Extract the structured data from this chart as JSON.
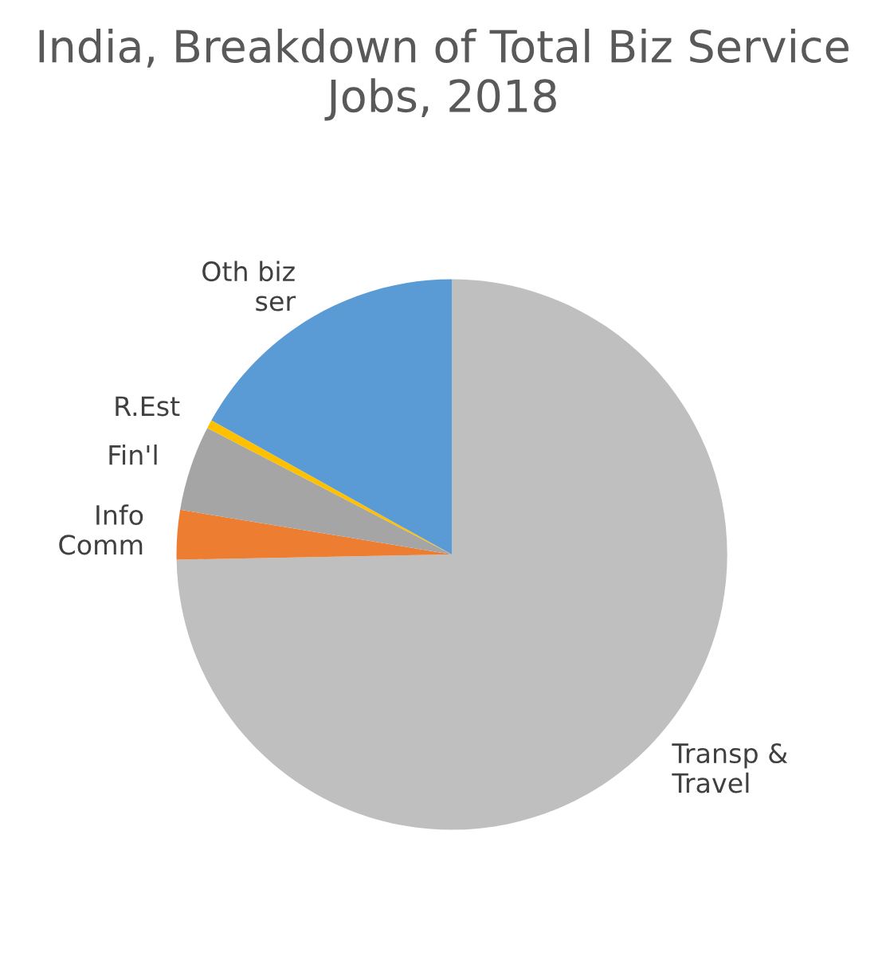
{
  "chart_data": {
    "type": "pie",
    "title": "India, Breakdown of Total Biz Service Jobs, 2018",
    "categories": [
      "Transp & Travel",
      "Info Comm",
      "Fin'l",
      "R.Est",
      "Oth biz ser"
    ],
    "values": [
      74.7,
      2.9,
      5.0,
      0.5,
      16.9
    ],
    "colors": [
      "#bfbfbf",
      "#ed7d31",
      "#a5a5a5",
      "#ffc000",
      "#5b9bd5"
    ],
    "legend": false
  }
}
